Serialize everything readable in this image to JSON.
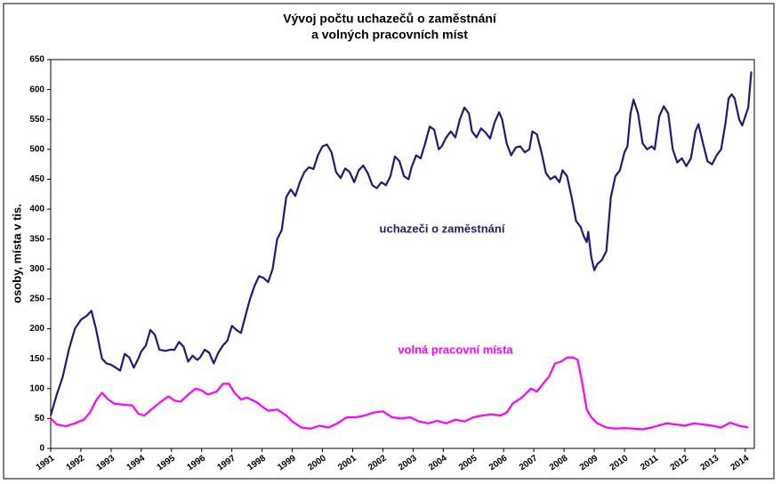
{
  "chart_data": {
    "type": "line",
    "title": "Vývoj počtu uchazečů o zaměstnání",
    "subtitle": "a volných pracovních míst",
    "y_label": "osoby, místa v tis.",
    "xlim": [
      1991,
      2014.3
    ],
    "xticks": [
      1991,
      1992,
      1993,
      1994,
      1995,
      1996,
      1997,
      1998,
      1999,
      2000,
      2001,
      2002,
      2003,
      2004,
      2005,
      2006,
      2007,
      2008,
      2009,
      2010,
      2011,
      2012,
      2013,
      2014
    ],
    "ylim": [
      0,
      650
    ],
    "yticks": [
      0,
      50,
      100,
      150,
      200,
      250,
      300,
      350,
      400,
      450,
      500,
      550,
      600,
      650
    ],
    "series": [
      {
        "name": "uchazeči o zaměstnání",
        "color": "#1c1c7c",
        "x": [
          1991.0,
          1991.2,
          1991.4,
          1991.6,
          1991.8,
          1992.0,
          1992.2,
          1992.35,
          1992.5,
          1992.7,
          1992.85,
          1993.0,
          1993.15,
          1993.3,
          1993.45,
          1993.6,
          1993.75,
          1993.9,
          1994.0,
          1994.15,
          1994.3,
          1994.45,
          1994.6,
          1994.8,
          1994.95,
          1995.1,
          1995.25,
          1995.4,
          1995.55,
          1995.7,
          1995.85,
          1995.95,
          1996.1,
          1996.25,
          1996.4,
          1996.55,
          1996.7,
          1996.85,
          1997.0,
          1997.15,
          1997.3,
          1997.45,
          1997.6,
          1997.75,
          1997.9,
          1998.05,
          1998.2,
          1998.35,
          1998.5,
          1998.65,
          1998.8,
          1998.95,
          1999.1,
          1999.25,
          1999.4,
          1999.55,
          1999.7,
          1999.85,
          2000.0,
          2000.15,
          2000.3,
          2000.45,
          2000.6,
          2000.75,
          2000.9,
          2001.05,
          2001.2,
          2001.35,
          2001.5,
          2001.65,
          2001.8,
          2001.95,
          2002.1,
          2002.25,
          2002.4,
          2002.55,
          2002.7,
          2002.85,
          2002.95,
          2003.1,
          2003.25,
          2003.4,
          2003.55,
          2003.7,
          2003.85,
          2003.95,
          2004.1,
          2004.25,
          2004.4,
          2004.55,
          2004.7,
          2004.85,
          2004.95,
          2005.1,
          2005.25,
          2005.4,
          2005.55,
          2005.7,
          2005.85,
          2005.95,
          2006.1,
          2006.25,
          2006.4,
          2006.55,
          2006.7,
          2006.85,
          2006.95,
          2007.1,
          2007.25,
          2007.4,
          2007.55,
          2007.7,
          2007.85,
          2007.95,
          2008.1,
          2008.25,
          2008.4,
          2008.55,
          2008.65,
          2008.75,
          2008.8,
          2008.9,
          2009.0,
          2009.1,
          2009.25,
          2009.4,
          2009.55,
          2009.7,
          2009.85,
          2010.0,
          2010.1,
          2010.2,
          2010.3,
          2010.45,
          2010.6,
          2010.75,
          2010.9,
          2011.0,
          2011.15,
          2011.3,
          2011.45,
          2011.6,
          2011.75,
          2011.9,
          2012.05,
          2012.2,
          2012.35,
          2012.45,
          2012.6,
          2012.75,
          2012.9,
          2013.05,
          2013.2,
          2013.35,
          2013.45,
          2013.55,
          2013.65,
          2013.8,
          2013.9,
          2014.0,
          2014.1,
          2014.2
        ],
        "values": [
          55,
          90,
          120,
          165,
          200,
          215,
          222,
          230,
          200,
          150,
          142,
          140,
          135,
          130,
          158,
          152,
          135,
          150,
          162,
          172,
          198,
          190,
          165,
          163,
          165,
          165,
          178,
          170,
          145,
          155,
          148,
          152,
          165,
          160,
          142,
          160,
          172,
          180,
          205,
          198,
          193,
          222,
          250,
          272,
          288,
          285,
          278,
          300,
          350,
          365,
          420,
          433,
          422,
          445,
          462,
          470,
          467,
          490,
          505,
          508,
          495,
          462,
          452,
          468,
          462,
          445,
          465,
          473,
          460,
          440,
          435,
          445,
          440,
          455,
          488,
          480,
          455,
          450,
          470,
          490,
          485,
          510,
          538,
          533,
          500,
          505,
          520,
          530,
          520,
          550,
          570,
          560,
          530,
          520,
          535,
          528,
          518,
          545,
          562,
          550,
          510,
          490,
          503,
          505,
          495,
          500,
          530,
          525,
          495,
          460,
          450,
          455,
          445,
          465,
          455,
          420,
          380,
          370,
          355,
          345,
          362,
          320,
          298,
          308,
          315,
          330,
          420,
          455,
          465,
          495,
          505,
          560,
          583,
          560,
          510,
          500,
          505,
          500,
          555,
          572,
          560,
          500,
          478,
          485,
          472,
          485,
          530,
          542,
          510,
          480,
          475,
          490,
          500,
          545,
          585,
          592,
          585,
          550,
          540,
          555,
          570,
          630
        ]
      },
      {
        "name": "volná pracovní místa",
        "color": "#ff00ff",
        "x": [
          1991.0,
          1991.2,
          1991.5,
          1991.8,
          1992.1,
          1992.3,
          1992.5,
          1992.7,
          1992.9,
          1993.1,
          1993.4,
          1993.7,
          1993.9,
          1994.1,
          1994.4,
          1994.7,
          1994.9,
          1995.1,
          1995.3,
          1995.6,
          1995.8,
          1996.0,
          1996.2,
          1996.5,
          1996.7,
          1996.9,
          1997.1,
          1997.3,
          1997.5,
          1997.8,
          1998.0,
          1998.2,
          1998.5,
          1998.8,
          1999.0,
          1999.3,
          1999.6,
          1999.9,
          2000.2,
          2000.5,
          2000.8,
          2001.1,
          2001.4,
          2001.7,
          2002.0,
          2002.3,
          2002.6,
          2002.9,
          2003.2,
          2003.5,
          2003.8,
          2004.1,
          2004.4,
          2004.7,
          2005.0,
          2005.3,
          2005.6,
          2005.9,
          2006.1,
          2006.3,
          2006.6,
          2006.9,
          2007.1,
          2007.3,
          2007.5,
          2007.7,
          2007.9,
          2008.1,
          2008.3,
          2008.45,
          2008.6,
          2008.75,
          2008.9,
          2009.1,
          2009.4,
          2009.7,
          2010.0,
          2010.3,
          2010.6,
          2010.9,
          2011.1,
          2011.4,
          2011.7,
          2012.0,
          2012.3,
          2012.6,
          2012.9,
          2013.2,
          2013.5,
          2013.8,
          2014.1
        ],
        "values": [
          50,
          40,
          37,
          42,
          48,
          60,
          80,
          93,
          82,
          75,
          73,
          72,
          58,
          55,
          68,
          80,
          87,
          80,
          78,
          92,
          100,
          97,
          90,
          95,
          108,
          108,
          92,
          82,
          85,
          78,
          70,
          63,
          65,
          55,
          45,
          35,
          33,
          38,
          35,
          42,
          52,
          52,
          55,
          60,
          62,
          52,
          50,
          52,
          45,
          42,
          46,
          42,
          48,
          45,
          52,
          55,
          57,
          55,
          60,
          75,
          85,
          100,
          95,
          108,
          120,
          142,
          145,
          152,
          152,
          148,
          110,
          65,
          52,
          42,
          35,
          33,
          34,
          33,
          32,
          35,
          38,
          42,
          40,
          38,
          42,
          40,
          38,
          35,
          43,
          38,
          35
        ]
      }
    ]
  }
}
